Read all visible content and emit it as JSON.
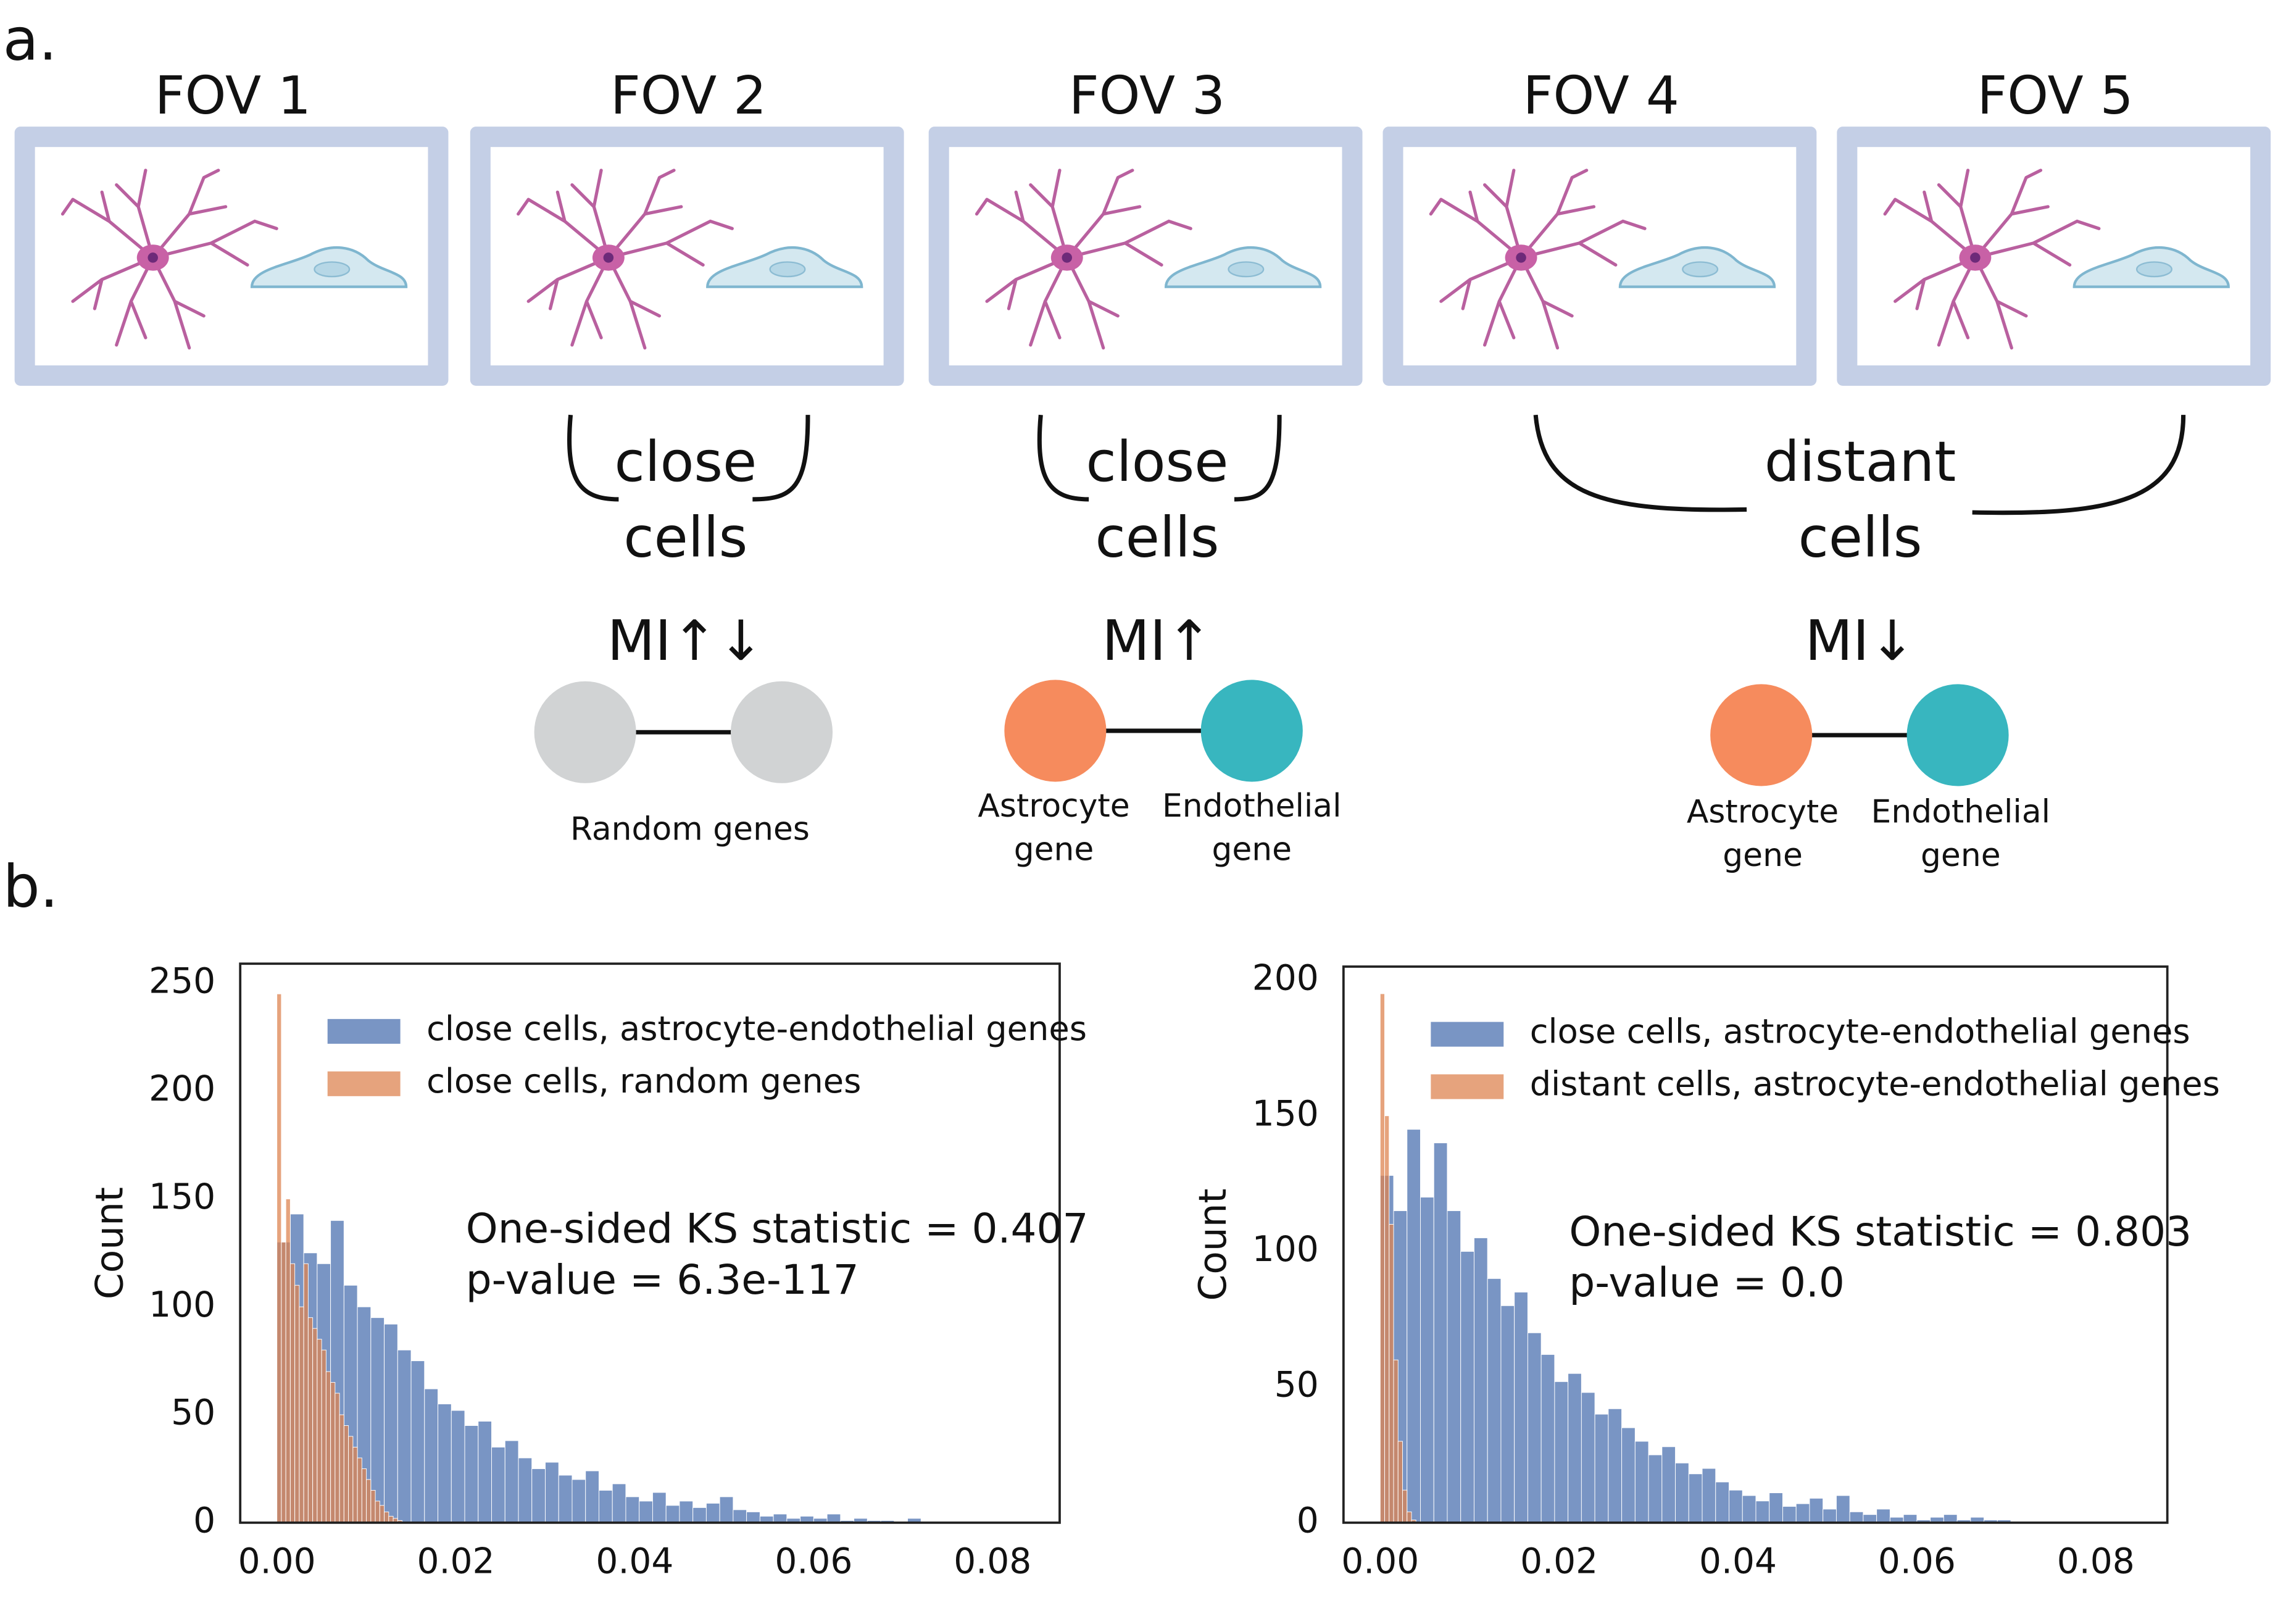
{
  "panel_labels": [
    "a.",
    "b."
  ],
  "diagram": {
    "fovs": [
      "FOV 1",
      "FOV 2",
      "FOV 3",
      "FOV 4",
      "FOV 5"
    ],
    "groups": [
      {
        "bracket": [
          "close",
          "cells"
        ],
        "mi": "MI↑↓",
        "genes": [
          [
            "Random genes"
          ]
        ]
      },
      {
        "bracket": [
          "close",
          "cells"
        ],
        "mi": "MI↑",
        "genes": [
          [
            "Astrocyte",
            "gene"
          ],
          [
            "Endothelial",
            "gene"
          ]
        ]
      },
      {
        "bracket": [
          "distant",
          "cells"
        ],
        "mi": "MI↓",
        "genes": [
          [
            "Astrocyte",
            "gene"
          ],
          [
            "Endothelial",
            "gene"
          ]
        ]
      }
    ]
  },
  "chart_data": [
    {
      "type": "histogram",
      "ylabel": "Count",
      "annotations": [
        "One-sided KS statistic = 0.407",
        "p-value = 6.3e-117"
      ],
      "legend": "upper right",
      "grid": false,
      "xlim": [
        -0.0041,
        0.0875
      ],
      "ylim": [
        0,
        259
      ],
      "xticks": [
        {
          "value": 0,
          "label": "0.00"
        },
        {
          "value": 0.02,
          "label": "0.02"
        },
        {
          "value": 0.04,
          "label": "0.04"
        },
        {
          "value": 0.06,
          "label": "0.06"
        },
        {
          "value": 0.08,
          "label": "0.08"
        }
      ],
      "yticks": [
        0,
        50,
        100,
        150,
        200,
        250
      ],
      "series": [
        {
          "name": "close cells, astrocyte-endothelial genes",
          "color": "#4c72b0",
          "bins": [
            0,
            0.0015,
            0.003,
            0.0045,
            0.006,
            0.0075,
            0.009,
            0.0105,
            0.012,
            0.0135,
            0.015,
            0.0165,
            0.018,
            0.0195,
            0.021,
            0.0225,
            0.024,
            0.0255,
            0.027,
            0.0285,
            0.03,
            0.0315,
            0.033,
            0.0345,
            0.036,
            0.0375,
            0.039,
            0.0405,
            0.042,
            0.0435,
            0.045,
            0.0465,
            0.048,
            0.0495,
            0.051,
            0.0525,
            0.054,
            0.0555,
            0.057,
            0.0585,
            0.06,
            0.0615,
            0.063,
            0.0645,
            0.066,
            0.0675,
            0.069,
            0.0705,
            0.072
          ],
          "values": [
            130,
            143,
            125,
            120,
            140,
            110,
            100,
            95,
            92,
            80,
            75,
            62,
            55,
            52,
            45,
            47,
            35,
            38,
            30,
            25,
            28,
            22,
            20,
            24,
            15,
            18,
            12,
            10,
            14,
            8,
            10,
            7,
            9,
            12,
            6,
            5,
            3,
            4,
            2,
            3,
            2,
            4,
            1,
            2,
            1,
            1,
            0,
            2
          ]
        },
        {
          "name": "close cells, random genes",
          "color": "#dd8452",
          "bins": [
            0,
            0.0005,
            0.001,
            0.0015,
            0.002,
            0.0025,
            0.003,
            0.0035,
            0.004,
            0.0045,
            0.005,
            0.0055,
            0.006,
            0.0065,
            0.007,
            0.0075,
            0.008,
            0.0085,
            0.009,
            0.0095,
            0.01,
            0.0105,
            0.011,
            0.0115,
            0.012,
            0.0125,
            0.013,
            0.0135,
            0.014
          ],
          "values": [
            245,
            130,
            150,
            120,
            110,
            100,
            120,
            95,
            90,
            85,
            80,
            70,
            65,
            60,
            50,
            45,
            40,
            35,
            30,
            25,
            20,
            15,
            10,
            8,
            5,
            3,
            2,
            1
          ]
        }
      ]
    },
    {
      "type": "histogram",
      "ylabel": "Count",
      "annotations": [
        "One-sided KS statistic = 0.803",
        "p-value = 0.0"
      ],
      "legend": "upper right",
      "grid": false,
      "xlim": [
        -0.0041,
        0.088
      ],
      "ylim": [
        0,
        205
      ],
      "xticks": [
        {
          "value": 0,
          "label": "0.00"
        },
        {
          "value": 0.02,
          "label": "0.02"
        },
        {
          "value": 0.04,
          "label": "0.04"
        },
        {
          "value": 0.06,
          "label": "0.06"
        },
        {
          "value": 0.08,
          "label": "0.08"
        }
      ],
      "yticks": [
        0,
        50,
        100,
        150,
        200
      ],
      "series": [
        {
          "name": "close cells, astrocyte-endothelial genes",
          "color": "#4c72b0",
          "bins": [
            0,
            0.0015,
            0.003,
            0.0045,
            0.006,
            0.0075,
            0.009,
            0.0105,
            0.012,
            0.0135,
            0.015,
            0.0165,
            0.018,
            0.0195,
            0.021,
            0.0225,
            0.024,
            0.0255,
            0.027,
            0.0285,
            0.03,
            0.0315,
            0.033,
            0.0345,
            0.036,
            0.0375,
            0.039,
            0.0405,
            0.042,
            0.0435,
            0.045,
            0.0465,
            0.048,
            0.0495,
            0.051,
            0.0525,
            0.054,
            0.0555,
            0.057,
            0.0585,
            0.06,
            0.0615,
            0.063,
            0.0645,
            0.066,
            0.0675,
            0.069,
            0.0705,
            0.072
          ],
          "values": [
            128,
            115,
            145,
            120,
            140,
            115,
            100,
            105,
            90,
            80,
            85,
            70,
            62,
            52,
            55,
            48,
            40,
            42,
            35,
            30,
            25,
            28,
            22,
            18,
            20,
            15,
            12,
            10,
            8,
            11,
            6,
            7,
            9,
            5,
            10,
            4,
            3,
            5,
            2,
            3,
            1,
            2,
            3,
            1,
            2,
            1,
            1,
            0
          ]
        },
        {
          "name": "distant cells, astrocyte-endothelial genes",
          "color": "#dd8452",
          "bins": [
            0,
            0.0005,
            0.001,
            0.0015,
            0.002,
            0.0025,
            0.003,
            0.0035,
            0.004
          ],
          "values": [
            195,
            150,
            110,
            60,
            30,
            12,
            4,
            1
          ]
        }
      ]
    }
  ]
}
